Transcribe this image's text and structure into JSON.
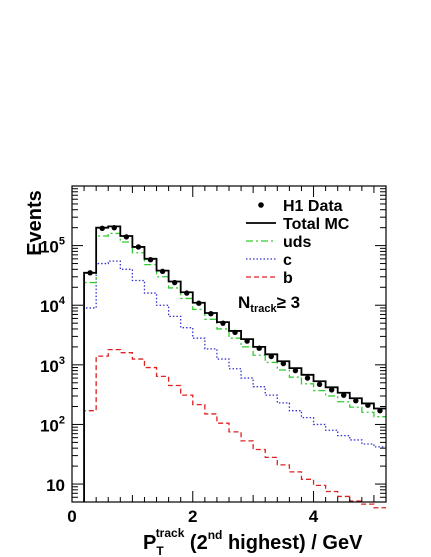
{
  "chart_data": {
    "type": "line",
    "x_axis": {
      "label_main": "P",
      "label_sub": "T",
      "label_sup": "track",
      "label_rest_pre": " (2",
      "label_rest_sup": "nd",
      "label_rest_post": " highest)  / GeV",
      "xlim": [
        0,
        5.2
      ],
      "ticks": [
        0,
        2,
        4
      ],
      "tick_labels": [
        "0",
        "2",
        "4"
      ]
    },
    "y_axis": {
      "label": "Events",
      "scale": "log",
      "ylim": [
        5,
        1000000
      ],
      "ticks": [
        10,
        100,
        1000,
        10000,
        100000
      ],
      "tick_base": "10",
      "tick_exp": [
        "",
        "2",
        "3",
        "4",
        "5"
      ]
    },
    "bin_edges": [
      0.2,
      0.4,
      0.6,
      0.8,
      1.0,
      1.2,
      1.4,
      1.6,
      1.8,
      2.0,
      2.2,
      2.4,
      2.6,
      2.8,
      3.0,
      3.2,
      3.4,
      3.6,
      3.8,
      4.0,
      4.2,
      4.4,
      4.6,
      4.8,
      5.0,
      5.2
    ],
    "data_x": [
      0.3,
      0.5,
      0.7,
      0.9,
      1.1,
      1.3,
      1.5,
      1.7,
      1.9,
      2.1,
      2.3,
      2.5,
      2.7,
      2.9,
      3.1,
      3.3,
      3.5,
      3.7,
      3.9,
      4.1,
      4.3,
      4.5,
      4.7,
      4.9,
      5.1
    ],
    "series": [
      {
        "name": "H1 Data",
        "style": "points",
        "color": "#000000",
        "values": [
          35000,
          195000,
          200000,
          140000,
          95000,
          58000,
          37000,
          24000,
          16000,
          10800,
          7200,
          5000,
          3500,
          2500,
          1900,
          1380,
          1050,
          800,
          600,
          470,
          380,
          310,
          250,
          210,
          170
        ]
      },
      {
        "name": "Total MC",
        "style": "solid",
        "color": "#000000",
        "values": [
          35000,
          200000,
          210000,
          145000,
          95000,
          60000,
          38000,
          25000,
          16500,
          11000,
          7400,
          5200,
          3700,
          2700,
          2000,
          1500,
          1150,
          880,
          680,
          530,
          420,
          340,
          275,
          225,
          185
        ]
      },
      {
        "name": "uds",
        "style": "dashdot",
        "color": "#33cc33",
        "values": [
          24000,
          145000,
          160000,
          115000,
          76000,
          48000,
          30000,
          19500,
          13000,
          8500,
          5800,
          4000,
          2800,
          2000,
          1450,
          1100,
          820,
          620,
          480,
          370,
          300,
          240,
          195,
          160,
          135
        ]
      },
      {
        "name": "c",
        "style": "dotted",
        "color": "#3333cc",
        "values": [
          9000,
          50000,
          55000,
          40000,
          26000,
          16000,
          10000,
          6500,
          4200,
          2800,
          1850,
          1250,
          860,
          600,
          430,
          310,
          230,
          170,
          130,
          100,
          80,
          65,
          55,
          47,
          42
        ]
      },
      {
        "name": "b",
        "style": "dashed",
        "color": "#dd2222",
        "values": [
          170,
          1400,
          1800,
          1600,
          1250,
          900,
          640,
          450,
          310,
          215,
          150,
          105,
          75,
          53,
          38,
          28,
          21,
          16,
          12,
          9.5,
          7.5,
          6.2,
          5.2,
          4.6,
          4.0
        ]
      }
    ],
    "legend": {
      "position": "top-right",
      "entries": [
        {
          "label": "H1 Data",
          "marker": "dot"
        },
        {
          "label": "Total MC",
          "marker": "solid"
        },
        {
          "label": "uds",
          "marker": "dashdot"
        },
        {
          "label": "c",
          "marker": "dotted"
        },
        {
          "label": "b",
          "marker": "dashed"
        }
      ]
    },
    "annotation": {
      "main": "N",
      "sub": "track",
      "rest": "≥ 3"
    }
  }
}
